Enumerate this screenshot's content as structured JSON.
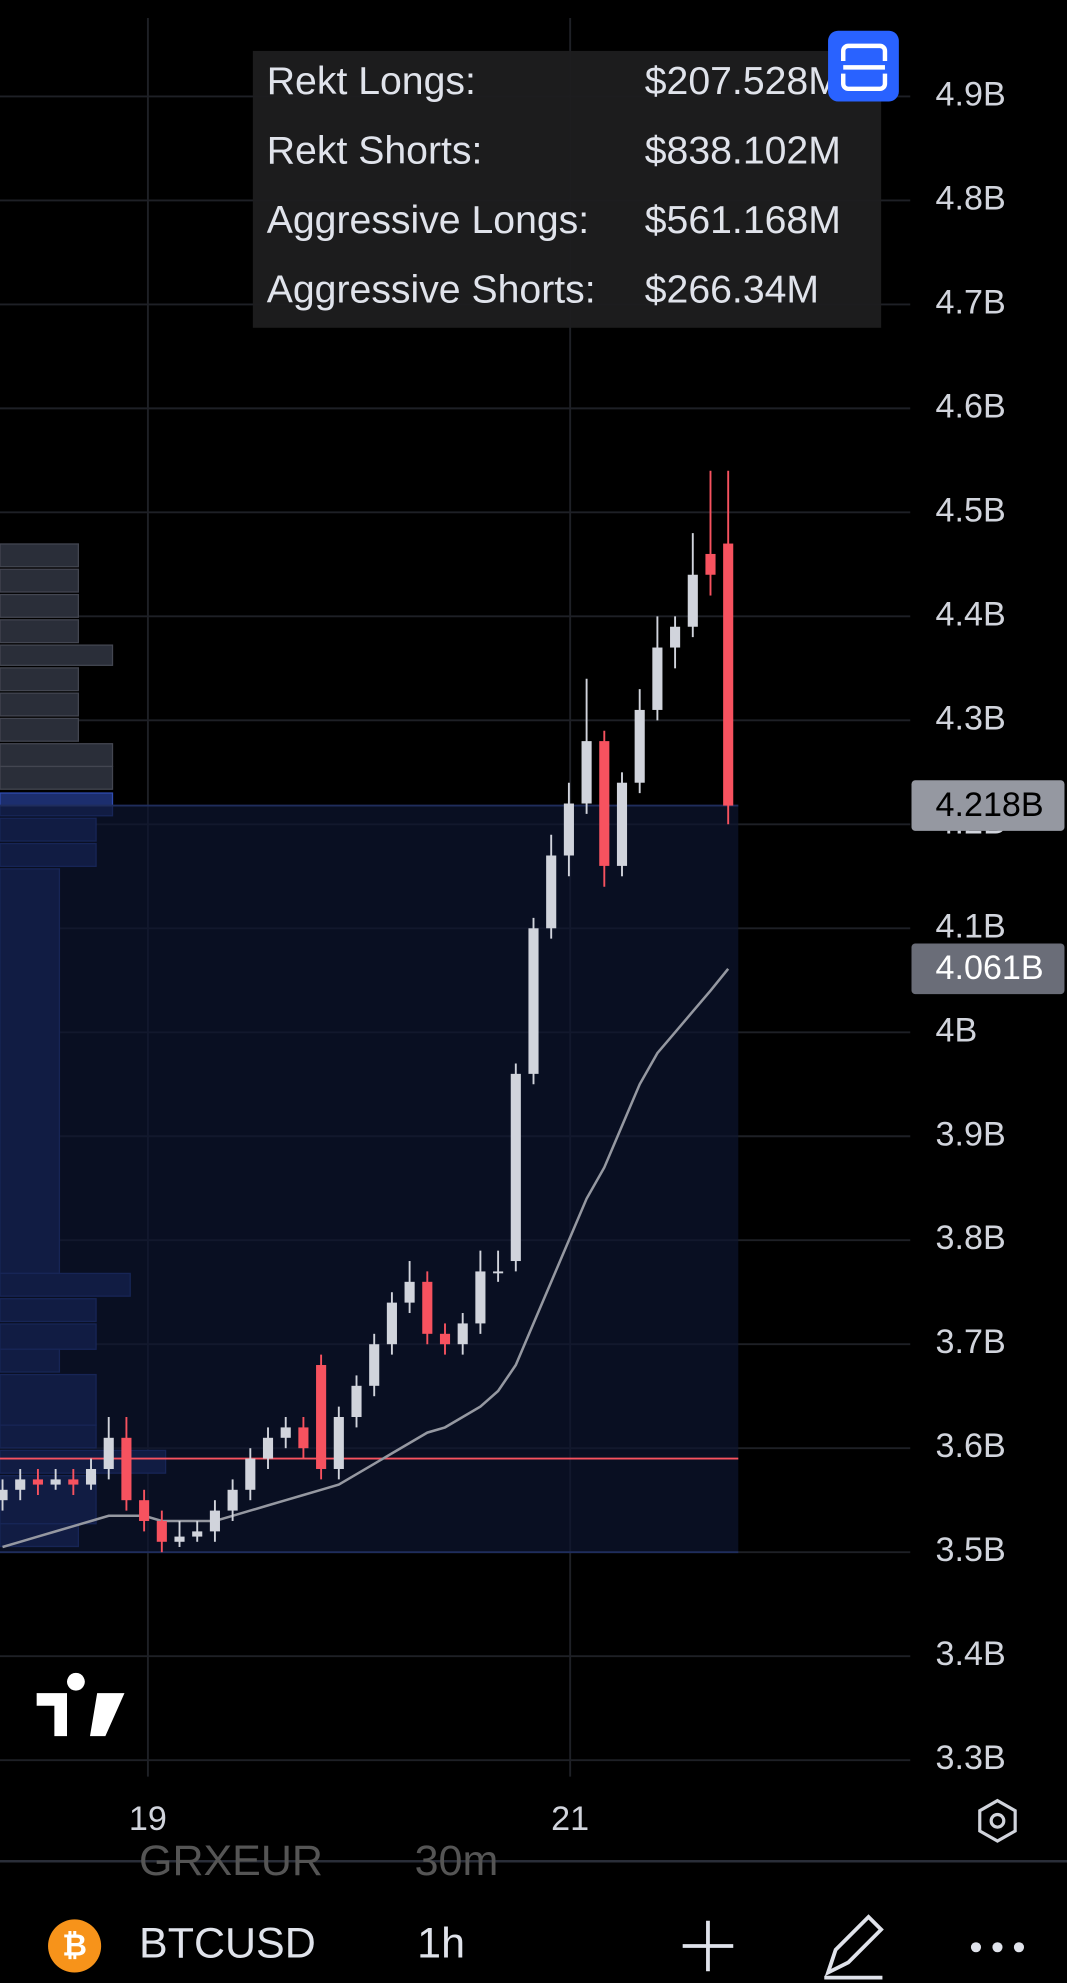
{
  "overlay": {
    "rows": [
      {
        "label": "Rekt Longs:",
        "value": "$207.528M"
      },
      {
        "label": "Rekt Shorts:",
        "value": "$838.102M"
      },
      {
        "label": "Aggressive Longs:",
        "value": "$561.168M"
      },
      {
        "label": "Aggressive Shorts:",
        "value": "$266.34M"
      }
    ]
  },
  "chart_data": {
    "type": "candlestick",
    "xticks": [
      "19",
      "21"
    ],
    "ylim": [
      3.3,
      4.9
    ],
    "yticks": [
      {
        "value": 3.3,
        "label": "3.3B"
      },
      {
        "value": 3.4,
        "label": "3.4B"
      },
      {
        "value": 3.5,
        "label": "3.5B"
      },
      {
        "value": 3.6,
        "label": "3.6B"
      },
      {
        "value": 3.7,
        "label": "3.7B"
      },
      {
        "value": 3.8,
        "label": "3.8B"
      },
      {
        "value": 3.9,
        "label": "3.9B"
      },
      {
        "value": 4,
        "label": "4B"
      },
      {
        "value": 4.1,
        "label": "4.1B"
      },
      {
        "value": 4.2,
        "label": "4.2B"
      },
      {
        "value": 4.3,
        "label": "4.3B"
      },
      {
        "value": 4.4,
        "label": "4.4B"
      },
      {
        "value": 4.5,
        "label": "4.5B"
      },
      {
        "value": 4.6,
        "label": "4.6B"
      },
      {
        "value": 4.7,
        "label": "4.7B"
      },
      {
        "value": 4.8,
        "label": "4.8B"
      },
      {
        "value": 4.9,
        "label": "4.9B"
      }
    ],
    "grid": true,
    "up_color": "#d1d4dc",
    "down_color": "#f7525f",
    "open": [
      3.55,
      3.56,
      3.57,
      3.565,
      3.57,
      3.565,
      3.58,
      3.61,
      3.55,
      3.53,
      3.51,
      3.515,
      3.52,
      3.54,
      3.56,
      3.59,
      3.61,
      3.62,
      3.68,
      3.58,
      3.63,
      3.66,
      3.7,
      3.74,
      3.76,
      3.71,
      3.7,
      3.72,
      3.77,
      3.78,
      3.96,
      4.1,
      4.17,
      4.22,
      4.28,
      4.16,
      4.24,
      4.31,
      4.37,
      4.39,
      4.46,
      4.47
    ],
    "high": [
      3.57,
      3.58,
      3.58,
      3.58,
      3.58,
      3.59,
      3.63,
      3.63,
      3.56,
      3.54,
      3.53,
      3.53,
      3.55,
      3.57,
      3.6,
      3.62,
      3.63,
      3.63,
      3.69,
      3.64,
      3.67,
      3.71,
      3.75,
      3.78,
      3.77,
      3.72,
      3.73,
      3.79,
      3.79,
      3.97,
      4.11,
      4.19,
      4.24,
      4.34,
      4.29,
      4.25,
      4.33,
      4.4,
      4.4,
      4.48,
      4.54,
      4.54
    ],
    "low": [
      3.54,
      3.55,
      3.555,
      3.56,
      3.555,
      3.56,
      3.57,
      3.54,
      3.52,
      3.5,
      3.505,
      3.51,
      3.51,
      3.53,
      3.55,
      3.58,
      3.6,
      3.59,
      3.57,
      3.57,
      3.62,
      3.65,
      3.69,
      3.73,
      3.7,
      3.69,
      3.69,
      3.71,
      3.76,
      3.77,
      3.95,
      4.09,
      4.15,
      4.21,
      4.14,
      4.15,
      4.23,
      4.3,
      4.35,
      4.38,
      4.42,
      4.2
    ],
    "close": [
      3.56,
      3.57,
      3.565,
      3.57,
      3.565,
      3.58,
      3.61,
      3.55,
      3.53,
      3.51,
      3.515,
      3.52,
      3.54,
      3.56,
      3.59,
      3.61,
      3.62,
      3.6,
      3.58,
      3.63,
      3.66,
      3.7,
      3.74,
      3.76,
      3.71,
      3.7,
      3.72,
      3.77,
      3.77,
      3.96,
      4.1,
      4.17,
      4.22,
      4.28,
      4.16,
      4.24,
      4.31,
      4.37,
      4.39,
      4.44,
      4.44,
      4.218
    ],
    "ma": {
      "color": "#9598a1",
      "values": [
        3.505,
        3.51,
        3.515,
        3.52,
        3.525,
        3.53,
        3.535,
        3.535,
        3.535,
        3.53,
        3.53,
        3.53,
        3.53,
        3.535,
        3.54,
        3.545,
        3.55,
        3.555,
        3.56,
        3.565,
        3.575,
        3.585,
        3.595,
        3.605,
        3.615,
        3.62,
        3.63,
        3.64,
        3.655,
        3.68,
        3.72,
        3.76,
        3.8,
        3.84,
        3.87,
        3.91,
        3.95,
        3.98,
        4.0,
        4.02,
        4.04,
        4.061
      ]
    },
    "hline": {
      "value": 3.59,
      "color": "#f7525f"
    },
    "last_price": {
      "value": 4.218,
      "label": "4.218B"
    },
    "ma_price": {
      "value": 4.061,
      "label": "4.061B"
    }
  },
  "toolbar": {
    "symbol": "BTCUSD",
    "interval": "1h",
    "prev_symbol": "GRXEUR",
    "prev_interval": "30m"
  }
}
